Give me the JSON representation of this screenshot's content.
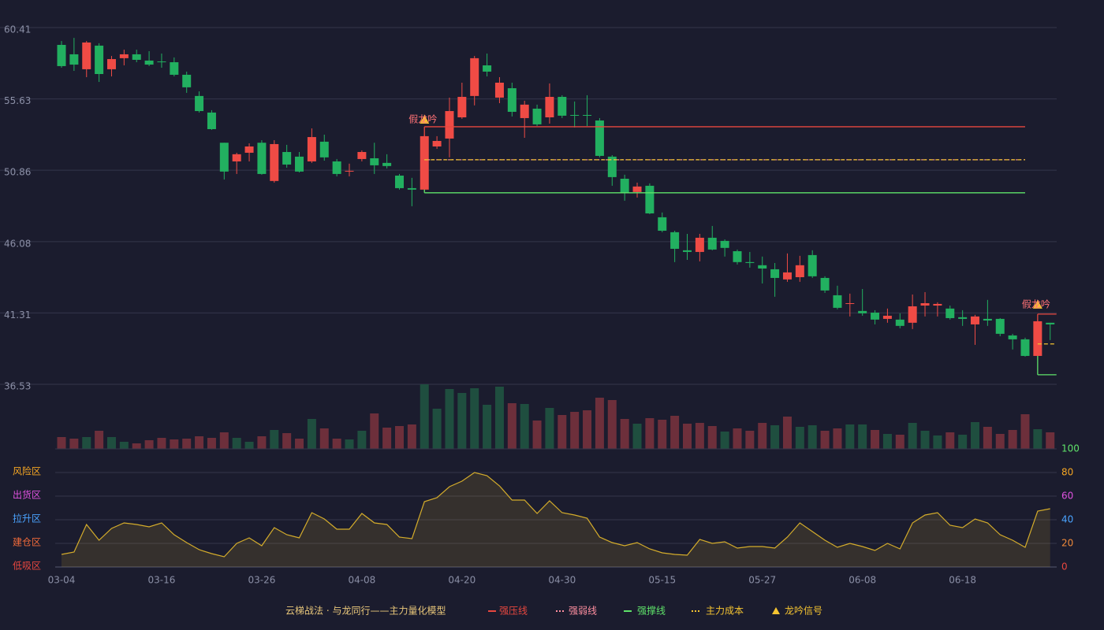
{
  "chart_data": [
    {
      "type": "candlestick",
      "title": "云梯战法 · 与龙同行——主力量化模型",
      "categories": [
        "03-04",
        null,
        null,
        null,
        null,
        null,
        null,
        null,
        "03-16",
        null,
        null,
        null,
        null,
        null,
        null,
        null,
        "03-26",
        null,
        null,
        null,
        null,
        null,
        null,
        null,
        "04-08",
        null,
        null,
        null,
        null,
        null,
        null,
        null,
        "04-20",
        null,
        null,
        null,
        null,
        null,
        null,
        null,
        "04-30",
        null,
        null,
        null,
        null,
        null,
        null,
        null,
        "05-15",
        null,
        null,
        null,
        null,
        null,
        null,
        null,
        "05-27",
        null,
        null,
        null,
        null,
        null,
        null,
        null,
        "06-08",
        null,
        null,
        null,
        null,
        null,
        null,
        null,
        "06-18",
        null,
        null,
        null,
        null,
        null,
        null,
        null
      ],
      "open": [
        59.25,
        58.62,
        57.62,
        59.2,
        57.62,
        58.36,
        58.62,
        58.2,
        58.14,
        58.09,
        57.25,
        55.83,
        54.72,
        52.7,
        51.45,
        52.03,
        52.7,
        50.14,
        52.08,
        51.77,
        51.45,
        52.77,
        51.45,
        50.77,
        51.61,
        51.66,
        51.35,
        50.5,
        49.66,
        49.56,
        52.45,
        52.98,
        54.4,
        55.83,
        57.88,
        55.72,
        56.35,
        54.35,
        54.98,
        54.4,
        55.77,
        54.56,
        54.56,
        54.19,
        51.77,
        50.29,
        49.4,
        49.82,
        47.71,
        46.71,
        45.5,
        45.39,
        46.34,
        46.13,
        45.44,
        44.71,
        44.5,
        44.23,
        43.55,
        43.7,
        45.18,
        43.65,
        42.49,
        41.91,
        41.44,
        41.33,
        40.91,
        40.86,
        40.65,
        41.8,
        41.8,
        41.6,
        41.02,
        40.54,
        40.91,
        40.91,
        39.8,
        39.54,
        38.43,
        40.65
      ],
      "high": [
        59.51,
        59.72,
        59.51,
        59.36,
        58.51,
        58.93,
        58.93,
        58.83,
        58.67,
        58.41,
        57.46,
        56.14,
        54.88,
        52.7,
        52.03,
        52.66,
        52.87,
        52.87,
        52.56,
        52.08,
        53.66,
        53.24,
        51.61,
        51.3,
        52.19,
        52.7,
        51.93,
        50.61,
        50.35,
        53.24,
        53.14,
        55.72,
        56.72,
        58.51,
        58.67,
        57.09,
        56.72,
        55.51,
        55.25,
        56.67,
        55.88,
        55.46,
        55.88,
        54.35,
        51.87,
        50.56,
        50.03,
        49.98,
        48.03,
        46.81,
        46.6,
        46.6,
        47.13,
        46.23,
        45.55,
        45.39,
        45.08,
        44.65,
        45.29,
        45.13,
        45.5,
        43.76,
        43.13,
        42.6,
        42.91,
        41.49,
        41.6,
        41.28,
        42.54,
        42.7,
        42.02,
        41.8,
        41.49,
        41.18,
        42.18,
        40.96,
        39.91,
        39.65,
        40.86,
        40.65
      ],
      "low": [
        57.72,
        57.51,
        57.09,
        56.77,
        57.14,
        57.88,
        58.09,
        57.83,
        57.72,
        57.14,
        56.04,
        54.72,
        53.56,
        50.24,
        50.61,
        51.45,
        50.56,
        50.03,
        51.03,
        50.71,
        51.35,
        51.5,
        50.45,
        50.45,
        51.45,
        50.61,
        50.98,
        49.56,
        48.45,
        49.45,
        52.29,
        51.72,
        54.3,
        55.2,
        57.14,
        55.35,
        54.46,
        53.03,
        53.82,
        53.98,
        54.35,
        53.72,
        53.82,
        51.72,
        49.82,
        48.82,
        49.03,
        47.92,
        46.71,
        44.71,
        44.86,
        44.76,
        45.5,
        45.08,
        44.55,
        44.34,
        43.28,
        42.39,
        43.39,
        43.39,
        43.65,
        42.65,
        41.55,
        41.07,
        41.12,
        40.54,
        40.65,
        40.28,
        40.23,
        41.07,
        41.07,
        40.86,
        40.44,
        39.17,
        40.44,
        39.75,
        38.86,
        38.38,
        38.43,
        39.49
      ],
      "close": [
        57.83,
        57.93,
        59.41,
        57.3,
        58.3,
        58.62,
        58.25,
        57.93,
        58.09,
        57.25,
        56.41,
        54.82,
        53.61,
        50.77,
        51.93,
        52.45,
        50.61,
        52.61,
        51.24,
        50.77,
        53.08,
        51.72,
        50.61,
        50.82,
        52.08,
        51.19,
        51.14,
        49.66,
        49.56,
        53.14,
        52.82,
        54.82,
        55.77,
        58.36,
        57.46,
        56.72,
        54.77,
        55.25,
        53.93,
        55.77,
        54.51,
        54.51,
        54.51,
        51.82,
        50.4,
        49.35,
        49.77,
        47.97,
        46.81,
        45.6,
        45.39,
        46.34,
        45.55,
        45.66,
        44.71,
        44.65,
        44.28,
        43.65,
        44.02,
        44.5,
        43.76,
        42.81,
        41.65,
        41.96,
        41.28,
        40.86,
        41.12,
        40.44,
        41.75,
        41.96,
        41.91,
        40.96,
        40.91,
        41.07,
        40.8,
        39.91,
        39.54,
        38.43,
        40.75,
        40.54
      ],
      "up_color": "#ef4b45",
      "down_color": "#22b060",
      "ylim": [
        36.53,
        60.41
      ],
      "yticks": [
        60.41,
        55.63,
        50.86,
        46.08,
        41.31,
        36.53
      ],
      "grid": true,
      "levels": [
        {
          "name": "强压线",
          "color": "#e8473f",
          "style": "solid",
          "segments": [
            {
              "start": 29,
              "end": 77,
              "value": 53.77
            },
            {
              "start": 78,
              "end": 79,
              "value": 41.23
            }
          ]
        },
        {
          "name": "强弱线",
          "color": "#ff8fa0",
          "style": "dotted",
          "segments": [
            {
              "start": 29,
              "end": 77,
              "value": 51.56
            }
          ]
        },
        {
          "name": "强撑线",
          "color": "#5fe36a",
          "style": "solid",
          "segments": [
            {
              "start": 29,
              "end": 77,
              "value": 49.35
            },
            {
              "start": 78,
              "end": 79,
              "value": 37.17
            }
          ]
        },
        {
          "name": "主力成本",
          "color": "#f5c431",
          "style": "dashed",
          "segments": [
            {
              "start": 29,
              "end": 77,
              "value": 51.56
            },
            {
              "start": 78,
              "end": 79,
              "value": 39.23
            }
          ]
        }
      ],
      "signals": {
        "name": "龙吟信号",
        "color": "#f5c431",
        "points": [
          {
            "index": 29,
            "label": "假龙吟"
          },
          {
            "index": 78,
            "label": "假龙吟"
          }
        ]
      }
    },
    {
      "type": "bar",
      "values": [
        15,
        13,
        15,
        23,
        15,
        9,
        7,
        11,
        14,
        12,
        13,
        16,
        14,
        21,
        14,
        9,
        16,
        24,
        20,
        13,
        38,
        26,
        13,
        12,
        23,
        45,
        27,
        29,
        31,
        82,
        51,
        76,
        71,
        77,
        56,
        79,
        58,
        57,
        36,
        52,
        43,
        47,
        49,
        65,
        62,
        38,
        32,
        39,
        37,
        42,
        32,
        33,
        29,
        22,
        26,
        23,
        33,
        30,
        41,
        28,
        30,
        23,
        26,
        31,
        31,
        24,
        19,
        18,
        33,
        23,
        17,
        21,
        18,
        34,
        28,
        19,
        24,
        44,
        25,
        21
      ],
      "colors": [
        "#6d2f3b",
        "#6d2f3b",
        "#1f4e3f",
        "#6d2f3b",
        "#1f4e3f",
        "#1f4e3f",
        "#6d2f3b",
        "#6d2f3b",
        "#6d2f3b",
        "#6d2f3b",
        "#6d2f3b",
        "#6d2f3b",
        "#6d2f3b",
        "#6d2f3b",
        "#1f4e3f",
        "#1f4e3f",
        "#6d2f3b",
        "#1f4e3f",
        "#6d2f3b",
        "#6d2f3b",
        "#1f4e3f",
        "#6d2f3b",
        "#6d2f3b",
        "#1f4e3f",
        "#1f4e3f",
        "#6d2f3b",
        "#6d2f3b",
        "#6d2f3b",
        "#6d2f3b",
        "#1f4e3f",
        "#1f4e3f",
        "#1f4e3f",
        "#1f4e3f",
        "#1f4e3f",
        "#1f4e3f",
        "#1f4e3f",
        "#6d2f3b",
        "#1f4e3f",
        "#6d2f3b",
        "#1f4e3f",
        "#6d2f3b",
        "#6d2f3b",
        "#6d2f3b",
        "#6d2f3b",
        "#6d2f3b",
        "#6d2f3b",
        "#1f4e3f",
        "#6d2f3b",
        "#6d2f3b",
        "#6d2f3b",
        "#6d2f3b",
        "#6d2f3b",
        "#6d2f3b",
        "#1f4e3f",
        "#6d2f3b",
        "#6d2f3b",
        "#6d2f3b",
        "#1f4e3f",
        "#6d2f3b",
        "#1f4e3f",
        "#1f4e3f",
        "#6d2f3b",
        "#6d2f3b",
        "#1f4e3f",
        "#1f4e3f",
        "#6d2f3b",
        "#1f4e3f",
        "#6d2f3b",
        "#1f4e3f",
        "#1f4e3f",
        "#1f4e3f",
        "#6d2f3b",
        "#1f4e3f",
        "#1f4e3f",
        "#6d2f3b",
        "#6d2f3b",
        "#6d2f3b",
        "#6d2f3b",
        "#1f4e3f",
        "#6d2f3b"
      ]
    },
    {
      "type": "line",
      "values": [
        10.7,
        12.7,
        36,
        22.7,
        32.7,
        37.3,
        36,
        34,
        37.3,
        27.3,
        20.7,
        14.7,
        11.3,
        8.7,
        20,
        24.7,
        18,
        33.3,
        27.3,
        24.7,
        46,
        40.7,
        32,
        32,
        45.3,
        37.3,
        36,
        25.3,
        24,
        55.3,
        58.7,
        68,
        72.7,
        80,
        77.3,
        68.7,
        56.7,
        56.7,
        45.3,
        56,
        46,
        44,
        41.3,
        25.3,
        20.7,
        18,
        20.7,
        15.3,
        12,
        10.7,
        10,
        23.3,
        20,
        21.3,
        16,
        17.3,
        17.3,
        16,
        25.3,
        37.3,
        30,
        22.7,
        16.7,
        20,
        17.3,
        14,
        20,
        15.3,
        37.3,
        44,
        46,
        35.3,
        33.3,
        40.7,
        37.3,
        27.3,
        22.7,
        16.7,
        47.3,
        49.3
      ],
      "color": "#d4ac2b",
      "ylim": [
        0,
        100
      ],
      "yticks": [
        0,
        20,
        40,
        60,
        80,
        100
      ],
      "ytick_colors": [
        "#e8473f",
        "#f08a3a",
        "#4aa3ff",
        "#e052e0",
        "#f5a623",
        "#5fe36a"
      ],
      "zones": [
        {
          "label": "风险区",
          "value": 80,
          "color": "#f5a623"
        },
        {
          "label": "出货区",
          "value": 60,
          "color": "#e052e0"
        },
        {
          "label": "拉升区",
          "value": 40,
          "color": "#4aa3ff"
        },
        {
          "label": "建仓区",
          "value": 20,
          "color": "#f06a3a"
        },
        {
          "label": "低吸区",
          "value": 0,
          "color": "#e8473f"
        }
      ]
    }
  ]
}
